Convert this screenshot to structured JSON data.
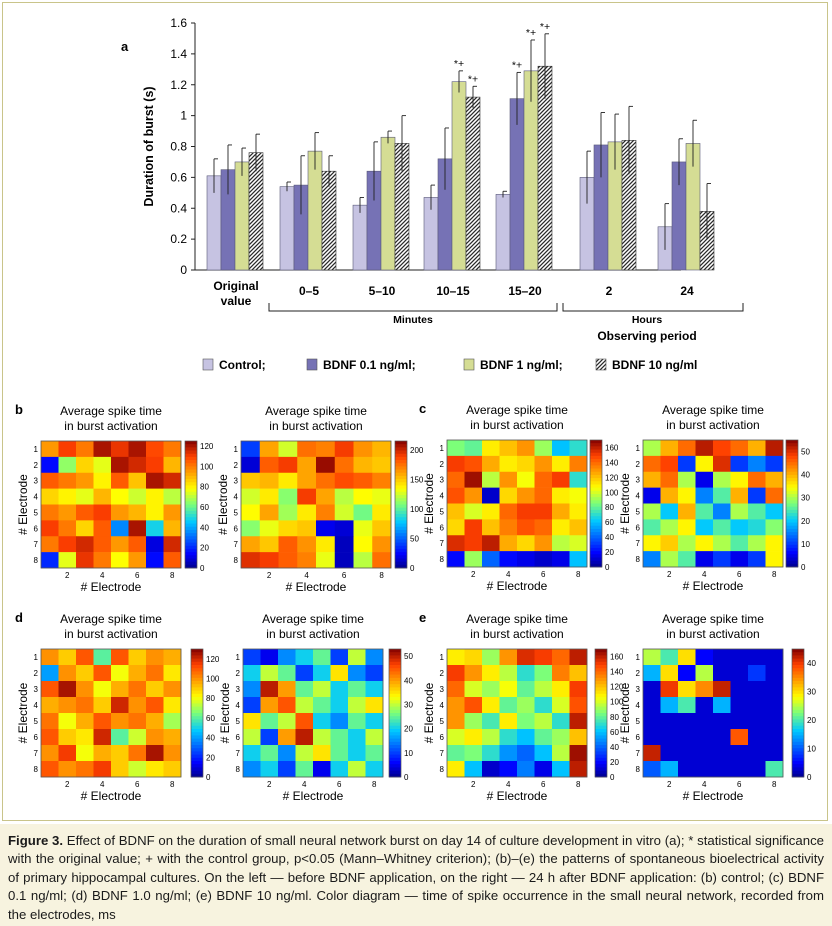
{
  "colors": {
    "control": "#c6c3e2",
    "bdnf01": "#7672b5",
    "bdnf1": "#d5dd94",
    "bdnf10": "#5a5a5a",
    "frame": "#c9c48a",
    "caption_bg": "#f7f3df"
  },
  "chart_data": [
    {
      "type": "bar",
      "panel_label": "a",
      "ylabel": "Duration of burst (s)",
      "xlabel": "Observing period",
      "ylim": [
        0,
        1.6
      ],
      "yticks": [
        "0",
        "0.2",
        "0.4",
        "0.6",
        "0.8",
        "1",
        "1.2",
        "1.4",
        "1.6"
      ],
      "categories": [
        "Original value",
        "0–5",
        "5–10",
        "10–15",
        "15–20",
        "2",
        "24"
      ],
      "group_labels": {
        "minutes": "Minutes",
        "hours": "Hours"
      },
      "legend": [
        "Control;",
        "BDNF 0.1 ng/ml;",
        "BDNF 1 ng/ml;",
        "BDNF 10 ng/ml"
      ],
      "series": [
        {
          "name": "Control;",
          "values": [
            0.61,
            0.54,
            0.42,
            0.47,
            0.49,
            0.6,
            0.28
          ],
          "errors": [
            0.11,
            0.03,
            0.05,
            0.08,
            0.02,
            0.17,
            0.15
          ]
        },
        {
          "name": "BDNF 0.1 ng/ml;",
          "values": [
            0.65,
            0.55,
            0.64,
            0.72,
            1.11,
            0.81,
            0.7
          ],
          "errors": [
            0.16,
            0.19,
            0.19,
            0.2,
            0.17,
            0.21,
            0.15
          ]
        },
        {
          "name": "BDNF 1 ng/ml;",
          "values": [
            0.7,
            0.77,
            0.86,
            1.22,
            1.29,
            0.83,
            0.82
          ],
          "errors": [
            0.09,
            0.12,
            0.04,
            0.07,
            0.2,
            0.18,
            0.15
          ]
        },
        {
          "name": "BDNF 10 ng/ml",
          "values": [
            0.76,
            0.64,
            0.82,
            1.12,
            1.32,
            0.84,
            0.38
          ],
          "errors": [
            0.12,
            0.1,
            0.18,
            0.07,
            0.21,
            0.22,
            0.18
          ]
        }
      ],
      "annotations": [
        {
          "category": "10–15",
          "series": 2,
          "text": "*+"
        },
        {
          "category": "10–15",
          "series": 3,
          "text": "*+"
        },
        {
          "category": "15–20",
          "series": 1,
          "text": "*+"
        },
        {
          "category": "15–20",
          "series": 2,
          "text": "*+"
        },
        {
          "category": "15–20",
          "series": 3,
          "text": "*+"
        }
      ]
    },
    {
      "type": "heatmap",
      "panel_label": "b",
      "title": "Average spike time in burst activation",
      "xlabel": "# Electrode",
      "ylabel": "# Electrode",
      "xticks": [
        "2",
        "4",
        "6",
        "8"
      ],
      "yticks": [
        "1",
        "2",
        "3",
        "4",
        "5",
        "6",
        "7",
        "8"
      ],
      "colorbar": {
        "min": 0,
        "max": 125,
        "ticks": [
          "0",
          "20",
          "40",
          "60",
          "80",
          "100",
          "120"
        ]
      },
      "values": [
        [
          95,
          110,
          100,
          120,
          112,
          120,
          108,
          100
        ],
        [
          15,
          65,
          85,
          75,
          120,
          115,
          110,
          90
        ],
        [
          105,
          100,
          95,
          80,
          105,
          88,
          120,
          115
        ],
        [
          85,
          80,
          75,
          90,
          78,
          72,
          80,
          70
        ],
        [
          100,
          95,
          105,
          110,
          95,
          90,
          80,
          95
        ],
        [
          110,
          100,
          85,
          105,
          35,
          120,
          48,
          90
        ],
        [
          100,
          110,
          115,
          105,
          95,
          105,
          10,
          115
        ],
        [
          20,
          75,
          112,
          100,
          78,
          95,
          15,
          105
        ]
      ]
    },
    {
      "type": "heatmap",
      "panel_label": "",
      "title": "Average spike time in burst activation",
      "xlabel": "# Electrode",
      "ylabel": "# Electrode",
      "xticks": [
        "2",
        "4",
        "6",
        "8"
      ],
      "yticks": [
        "1",
        "2",
        "3",
        "4",
        "5",
        "6",
        "7",
        "8"
      ],
      "colorbar": {
        "min": 0,
        "max": 215,
        "ticks": [
          "0",
          "50",
          "100",
          "150",
          "200"
        ]
      },
      "values": [
        [
          40,
          160,
          125,
          175,
          170,
          190,
          165,
          155
        ],
        [
          15,
          180,
          190,
          160,
          210,
          175,
          155,
          150
        ],
        [
          150,
          155,
          140,
          160,
          175,
          185,
          180,
          170
        ],
        [
          125,
          140,
          110,
          190,
          160,
          120,
          135,
          130
        ],
        [
          135,
          160,
          115,
          140,
          170,
          125,
          105,
          140
        ],
        [
          110,
          130,
          145,
          150,
          20,
          15,
          130,
          150
        ],
        [
          160,
          150,
          180,
          165,
          140,
          10,
          135,
          165
        ],
        [
          195,
          190,
          180,
          170,
          130,
          10,
          120,
          175
        ]
      ]
    },
    {
      "type": "heatmap",
      "panel_label": "c",
      "title": "Average spike time in burst activation",
      "xlabel": "# Electrode",
      "ylabel": "# Electrode",
      "xticks": [
        "2",
        "4",
        "6",
        "8"
      ],
      "yticks": [
        "1",
        "2",
        "3",
        "4",
        "5",
        "6",
        "7",
        "8"
      ],
      "colorbar": {
        "min": 0,
        "max": 170,
        "ticks": [
          "0",
          "20",
          "40",
          "60",
          "80",
          "100",
          "120",
          "140",
          "160"
        ]
      },
      "values": [
        [
          85,
          80,
          110,
          120,
          130,
          90,
          60,
          70
        ],
        [
          150,
          145,
          125,
          110,
          115,
          130,
          110,
          135
        ],
        [
          140,
          165,
          95,
          130,
          105,
          140,
          150,
          70
        ],
        [
          145,
          130,
          10,
          115,
          130,
          140,
          110,
          105
        ],
        [
          120,
          100,
          110,
          140,
          150,
          150,
          125,
          110
        ],
        [
          115,
          150,
          120,
          135,
          145,
          140,
          110,
          120
        ],
        [
          155,
          150,
          160,
          125,
          115,
          130,
          95,
          100
        ],
        [
          20,
          90,
          40,
          20,
          15,
          10,
          15,
          60
        ]
      ]
    },
    {
      "type": "heatmap",
      "panel_label": "",
      "title": "Average spike time in burst activation",
      "xlabel": "# Electrode",
      "ylabel": "# Electrode",
      "xticks": [
        "2",
        "4",
        "6",
        "8"
      ],
      "yticks": [
        "1",
        "2",
        "3",
        "4",
        "5",
        "6",
        "7",
        "8"
      ],
      "colorbar": {
        "min": 0,
        "max": 55,
        "ticks": [
          "0",
          "10",
          "20",
          "30",
          "40",
          "50"
        ]
      },
      "values": [
        [
          30,
          40,
          45,
          52,
          48,
          45,
          40,
          52
        ],
        [
          45,
          48,
          10,
          35,
          50,
          10,
          15,
          10
        ],
        [
          40,
          45,
          30,
          5,
          30,
          35,
          45,
          40
        ],
        [
          5,
          40,
          35,
          15,
          25,
          40,
          10,
          45
        ],
        [
          30,
          20,
          40,
          25,
          15,
          30,
          25,
          20
        ],
        [
          25,
          30,
          35,
          20,
          25,
          20,
          22,
          28
        ],
        [
          35,
          38,
          30,
          35,
          30,
          25,
          30,
          35
        ],
        [
          15,
          30,
          25,
          5,
          10,
          5,
          10,
          35
        ]
      ]
    },
    {
      "type": "heatmap",
      "panel_label": "d",
      "title": "Average spike time in burst activation",
      "xlabel": "# Electrode",
      "ylabel": "# Electrode",
      "xticks": [
        "2",
        "4",
        "6",
        "8"
      ],
      "yticks": [
        "1",
        "2",
        "3",
        "4",
        "5",
        "6",
        "7",
        "8"
      ],
      "colorbar": {
        "min": 0,
        "max": 130,
        "ticks": [
          "0",
          "20",
          "40",
          "60",
          "80",
          "100",
          "120"
        ]
      },
      "values": [
        [
          100,
          90,
          110,
          60,
          110,
          90,
          100,
          95
        ],
        [
          40,
          100,
          90,
          110,
          80,
          95,
          105,
          85
        ],
        [
          110,
          125,
          100,
          80,
          95,
          105,
          90,
          100
        ],
        [
          95,
          100,
          105,
          90,
          120,
          100,
          110,
          85
        ],
        [
          105,
          80,
          95,
          110,
          100,
          105,
          95,
          70
        ],
        [
          110,
          90,
          85,
          120,
          60,
          75,
          100,
          95
        ],
        [
          100,
          115,
          80,
          95,
          90,
          105,
          125,
          100
        ],
        [
          110,
          100,
          105,
          115,
          90,
          75,
          85,
          90
        ]
      ]
    },
    {
      "type": "heatmap",
      "panel_label": "",
      "title": "Average spike time in burst activation",
      "xlabel": "# Electrode",
      "ylabel": "# Electrode",
      "xticks": [
        "2",
        "4",
        "6",
        "8"
      ],
      "yticks": [
        "1",
        "2",
        "3",
        "4",
        "5",
        "6",
        "7",
        "8"
      ],
      "colorbar": {
        "min": 0,
        "max": 53,
        "ticks": [
          "0",
          "10",
          "20",
          "30",
          "40",
          "50"
        ]
      },
      "values": [
        [
          10,
          5,
          15,
          20,
          25,
          10,
          30,
          15
        ],
        [
          20,
          30,
          25,
          10,
          20,
          35,
          15,
          10
        ],
        [
          15,
          50,
          40,
          25,
          30,
          20,
          25,
          20
        ],
        [
          10,
          40,
          45,
          30,
          25,
          20,
          30,
          35
        ],
        [
          35,
          25,
          30,
          45,
          20,
          15,
          25,
          20
        ],
        [
          30,
          10,
          40,
          50,
          30,
          25,
          20,
          30
        ],
        [
          20,
          25,
          15,
          30,
          35,
          25,
          20,
          25
        ],
        [
          15,
          20,
          10,
          25,
          5,
          20,
          30,
          20
        ]
      ]
    },
    {
      "type": "heatmap",
      "panel_label": "e",
      "title": "Average spike time in burst activation",
      "xlabel": "# Electrode",
      "ylabel": "# Electrode",
      "xticks": [
        "2",
        "4",
        "6",
        "8"
      ],
      "yticks": [
        "1",
        "2",
        "3",
        "4",
        "5",
        "6",
        "7",
        "8"
      ],
      "colorbar": {
        "min": 0,
        "max": 170,
        "ticks": [
          "0",
          "20",
          "40",
          "60",
          "80",
          "100",
          "120",
          "140",
          "160"
        ]
      },
      "values": [
        [
          110,
          115,
          90,
          130,
          155,
          150,
          140,
          160
        ],
        [
          150,
          130,
          110,
          95,
          70,
          85,
          135,
          120
        ],
        [
          140,
          100,
          90,
          105,
          80,
          95,
          110,
          150
        ],
        [
          130,
          145,
          110,
          80,
          90,
          70,
          100,
          145
        ],
        [
          130,
          90,
          75,
          110,
          85,
          95,
          70,
          160
        ],
        [
          100,
          110,
          95,
          70,
          60,
          80,
          90,
          120
        ],
        [
          80,
          85,
          70,
          50,
          40,
          60,
          95,
          165
        ],
        [
          110,
          60,
          10,
          20,
          45,
          15,
          60,
          160
        ]
      ]
    },
    {
      "type": "heatmap",
      "panel_label": "",
      "title": "Average spike time in burst activation",
      "xlabel": "# Electrode",
      "ylabel": "# Electrode",
      "xticks": [
        "2",
        "4",
        "6",
        "8"
      ],
      "yticks": [
        "1",
        "2",
        "3",
        "4",
        "5",
        "6",
        "7",
        "8"
      ],
      "colorbar": {
        "min": 0,
        "max": 45,
        "ticks": [
          "0",
          "10",
          "20",
          "30",
          "40"
        ]
      },
      "values": [
        [
          25,
          20,
          30,
          5,
          3,
          3,
          3,
          3
        ],
        [
          15,
          30,
          5,
          25,
          3,
          3,
          8,
          3
        ],
        [
          3,
          40,
          30,
          35,
          42,
          3,
          3,
          3
        ],
        [
          3,
          15,
          20,
          3,
          15,
          3,
          3,
          3
        ],
        [
          3,
          3,
          3,
          3,
          3,
          3,
          3,
          3
        ],
        [
          3,
          3,
          3,
          3,
          3,
          38,
          3,
          3
        ],
        [
          42,
          3,
          3,
          3,
          3,
          3,
          3,
          3
        ],
        [
          10,
          15,
          3,
          3,
          3,
          3,
          3,
          20
        ]
      ]
    }
  ],
  "caption": {
    "label": "Figure 3.",
    "text": "Effect of BDNF on the duration of small neural network burst on day 14 of culture development in vitro (a); * statistical significance with the original value; + with the control group, p<0.05 (Mann–Whitney criterion); (b)–(e) the patterns of spontaneous bioelectrical activity of primary hippocampal cultures. On the left — before BDNF application, on the right — 24 h after BDNF application: (b) control; (c) BDNF 0.1 ng/ml; (d) BDNF 1.0 ng/ml; (e) BDNF 10 ng/ml. Color diagram — time of spike occurrence in the small neural network, recorded from the electrodes, ms"
  }
}
